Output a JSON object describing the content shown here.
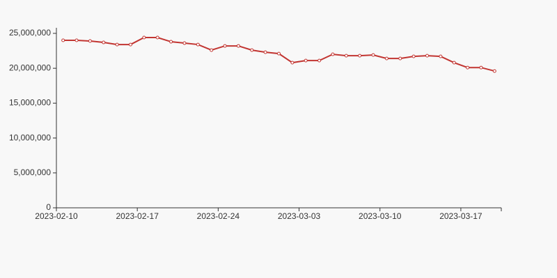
{
  "chart_data": {
    "type": "line",
    "x": [
      0.5,
      1.5,
      2.5,
      3.5,
      4.5,
      5.5,
      6.5,
      7.5,
      8.5,
      9.5,
      10.5,
      11.5,
      12.5,
      13.5,
      14.5,
      15.5,
      16.5,
      17.5,
      18.5,
      19.5,
      20.5,
      21.5,
      22.5,
      23.5,
      24.5,
      25.5,
      26.5,
      27.5,
      28.5,
      29.5,
      30.5,
      31.5,
      32.5
    ],
    "series": [
      {
        "color": "#c23531",
        "values": [
          24000000,
          24000000,
          23900000,
          23700000,
          23400000,
          23400000,
          24400000,
          24400000,
          23800000,
          23600000,
          23400000,
          22600000,
          23200000,
          23200000,
          22600000,
          22300000,
          22100000,
          20800000,
          21100000,
          21100000,
          22000000,
          21800000,
          21800000,
          21900000,
          21400000,
          21400000,
          21700000,
          21800000,
          21700000,
          20800000,
          20100000,
          20100000,
          19600000
        ]
      }
    ],
    "xlim": [
      0,
      33
    ],
    "xticks": [
      {
        "value": 0,
        "label": "2023-02-10"
      },
      {
        "value": 6,
        "label": "2023-02-17"
      },
      {
        "value": 12,
        "label": "2023-02-24"
      },
      {
        "value": 18,
        "label": "2023-03-03"
      },
      {
        "value": 24,
        "label": "2023-03-10"
      },
      {
        "value": 30,
        "label": "2023-03-17"
      }
    ],
    "ylim": [
      0,
      25000000
    ],
    "yticks": [
      0,
      {
        "value": 5000000,
        "label": "5,000,000"
      },
      {
        "value": 10000000,
        "label": "10,000,000"
      },
      {
        "value": 15000000,
        "label": "15,000,000"
      },
      {
        "value": 20000000,
        "label": "20,000,000"
      },
      {
        "value": 25000000,
        "label": "25,000,000"
      }
    ]
  }
}
